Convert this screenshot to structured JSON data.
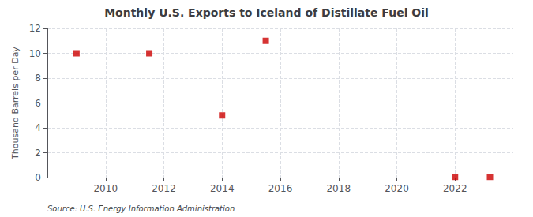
{
  "chart_data": {
    "type": "scatter",
    "title": "Monthly U.S. Exports to Iceland of Distillate Fuel Oil",
    "ylabel": "Thousand Barrels per Day",
    "annotation": "Source: U.S. Energy Information Administration",
    "x": [
      2009.0,
      2011.5,
      2014.0,
      2015.5,
      2022.0,
      2023.2
    ],
    "values": [
      10,
      10,
      5,
      11,
      0.05,
      0.05
    ],
    "color": "#cc0000",
    "marker": "square",
    "xlim": [
      2008.0,
      2024.0
    ],
    "xticks": [
      2010,
      2012,
      2014,
      2016,
      2018,
      2020,
      2022
    ],
    "ylim": [
      0,
      12
    ],
    "yticks": [
      0,
      2,
      4,
      6,
      8,
      10,
      12
    ],
    "grid": true
  }
}
